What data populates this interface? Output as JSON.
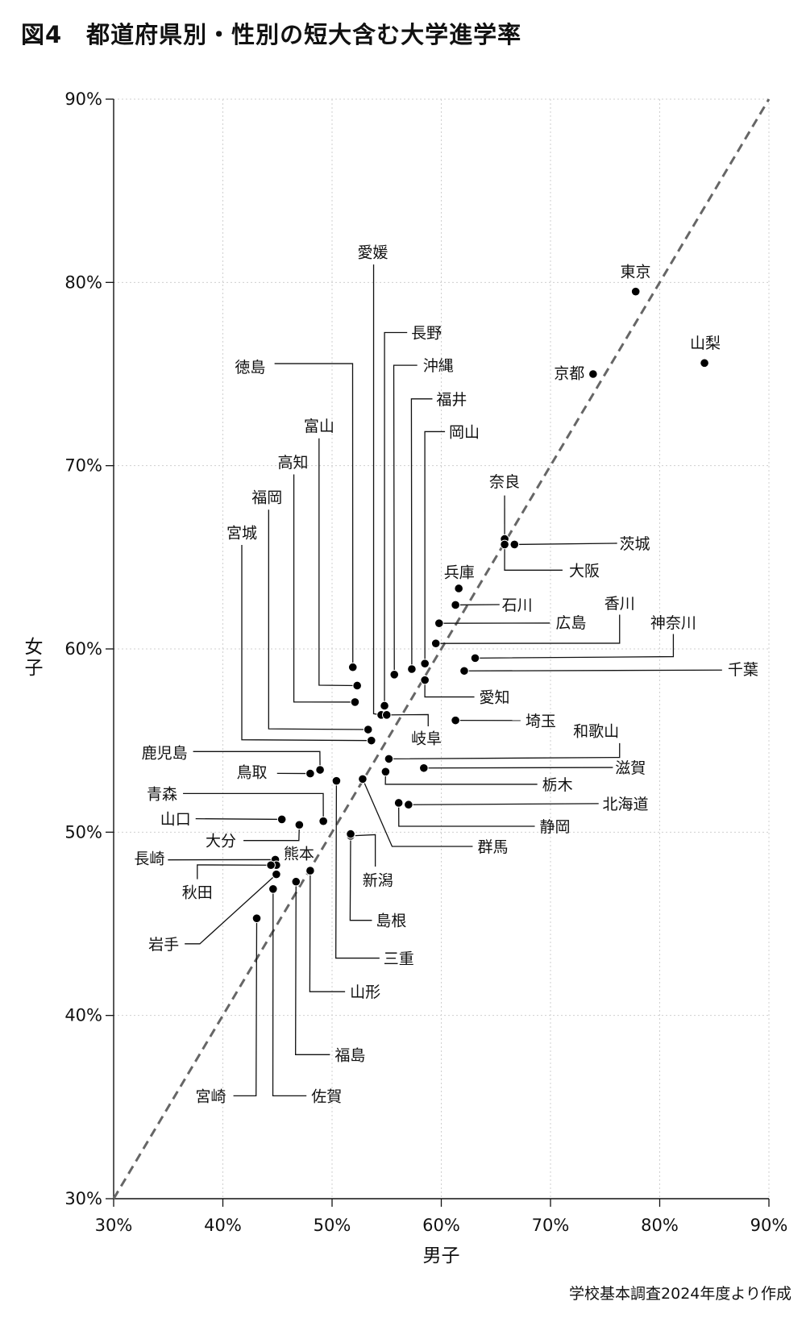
{
  "title": "図4　都道府県別・性別の短大含む大学進学率",
  "source": "学校基本調査2024年度より作成",
  "chart_data": {
    "type": "scatter",
    "title": "図4　都道府県別・性別の短大含む大学進学率",
    "xlabel": "男子",
    "ylabel": "女子",
    "xlim": [
      30,
      90
    ],
    "ylim": [
      30,
      90
    ],
    "x_ticks": [
      "30%",
      "40%",
      "50%",
      "60%",
      "70%",
      "80%",
      "90%"
    ],
    "y_ticks": [
      "30%",
      "40%",
      "50%",
      "60%",
      "70%",
      "80%",
      "90%"
    ],
    "grid": true,
    "reference_line": {
      "type": "y=x",
      "style": "dashed",
      "color": "#666666"
    },
    "point_color": "#000000",
    "points": [
      {
        "label": "東京",
        "x": 77.8,
        "y": 79.5
      },
      {
        "label": "山梨",
        "x": 84.1,
        "y": 75.6
      },
      {
        "label": "京都",
        "x": 73.9,
        "y": 75.0
      },
      {
        "label": "奈良",
        "x": 65.8,
        "y": 66.0
      },
      {
        "label": "大阪",
        "x": 65.8,
        "y": 65.7
      },
      {
        "label": "茨城",
        "x": 66.7,
        "y": 65.7
      },
      {
        "label": "兵庫",
        "x": 61.6,
        "y": 63.3
      },
      {
        "label": "石川",
        "x": 61.3,
        "y": 62.4
      },
      {
        "label": "広島",
        "x": 59.8,
        "y": 61.4
      },
      {
        "label": "香川",
        "x": 59.5,
        "y": 60.3
      },
      {
        "label": "神奈川",
        "x": 63.1,
        "y": 59.5
      },
      {
        "label": "千葉",
        "x": 62.1,
        "y": 58.8
      },
      {
        "label": "岡山",
        "x": 58.5,
        "y": 59.2
      },
      {
        "label": "愛知",
        "x": 58.5,
        "y": 58.3
      },
      {
        "label": "福井",
        "x": 57.3,
        "y": 58.9
      },
      {
        "label": "沖縄",
        "x": 55.7,
        "y": 58.6
      },
      {
        "label": "長野",
        "x": 54.8,
        "y": 56.9
      },
      {
        "label": "愛媛",
        "x": 54.5,
        "y": 56.4
      },
      {
        "label": "岐阜",
        "x": 55.0,
        "y": 56.4
      },
      {
        "label": "徳島",
        "x": 51.9,
        "y": 59.0
      },
      {
        "label": "富山",
        "x": 52.3,
        "y": 58.0
      },
      {
        "label": "高知",
        "x": 52.1,
        "y": 57.1
      },
      {
        "label": "福岡",
        "x": 53.3,
        "y": 55.6
      },
      {
        "label": "宮城",
        "x": 53.6,
        "y": 55.0
      },
      {
        "label": "埼玉",
        "x": 61.3,
        "y": 56.1
      },
      {
        "label": "和歌山",
        "x": 55.2,
        "y": 54.0
      },
      {
        "label": "滋賀",
        "x": 58.4,
        "y": 53.5
      },
      {
        "label": "栃木",
        "x": 54.9,
        "y": 53.3
      },
      {
        "label": "北海道",
        "x": 57.0,
        "y": 51.5
      },
      {
        "label": "静岡",
        "x": 56.1,
        "y": 51.6
      },
      {
        "label": "群馬",
        "x": 52.8,
        "y": 52.9
      },
      {
        "label": "鹿児島",
        "x": 48.9,
        "y": 53.4
      },
      {
        "label": "鳥取",
        "x": 48.0,
        "y": 53.2
      },
      {
        "label": "三重",
        "x": 50.4,
        "y": 52.8
      },
      {
        "label": "青森",
        "x": 49.2,
        "y": 50.6
      },
      {
        "label": "山口",
        "x": 45.4,
        "y": 50.7
      },
      {
        "label": "大分",
        "x": 47.0,
        "y": 50.4
      },
      {
        "label": "新潟",
        "x": 51.7,
        "y": 49.8
      },
      {
        "label": "島根",
        "x": 51.7,
        "y": 49.9
      },
      {
        "label": "長崎",
        "x": 44.8,
        "y": 48.5
      },
      {
        "label": "熊本",
        "x": 44.9,
        "y": 48.2
      },
      {
        "label": "秋田",
        "x": 44.4,
        "y": 48.2
      },
      {
        "label": "岩手",
        "x": 44.9,
        "y": 47.7
      },
      {
        "label": "佐賀",
        "x": 44.6,
        "y": 46.9
      },
      {
        "label": "福島",
        "x": 46.7,
        "y": 47.3
      },
      {
        "label": "山形",
        "x": 48.0,
        "y": 47.9
      },
      {
        "label": "宮崎",
        "x": 43.1,
        "y": 45.3
      }
    ]
  }
}
